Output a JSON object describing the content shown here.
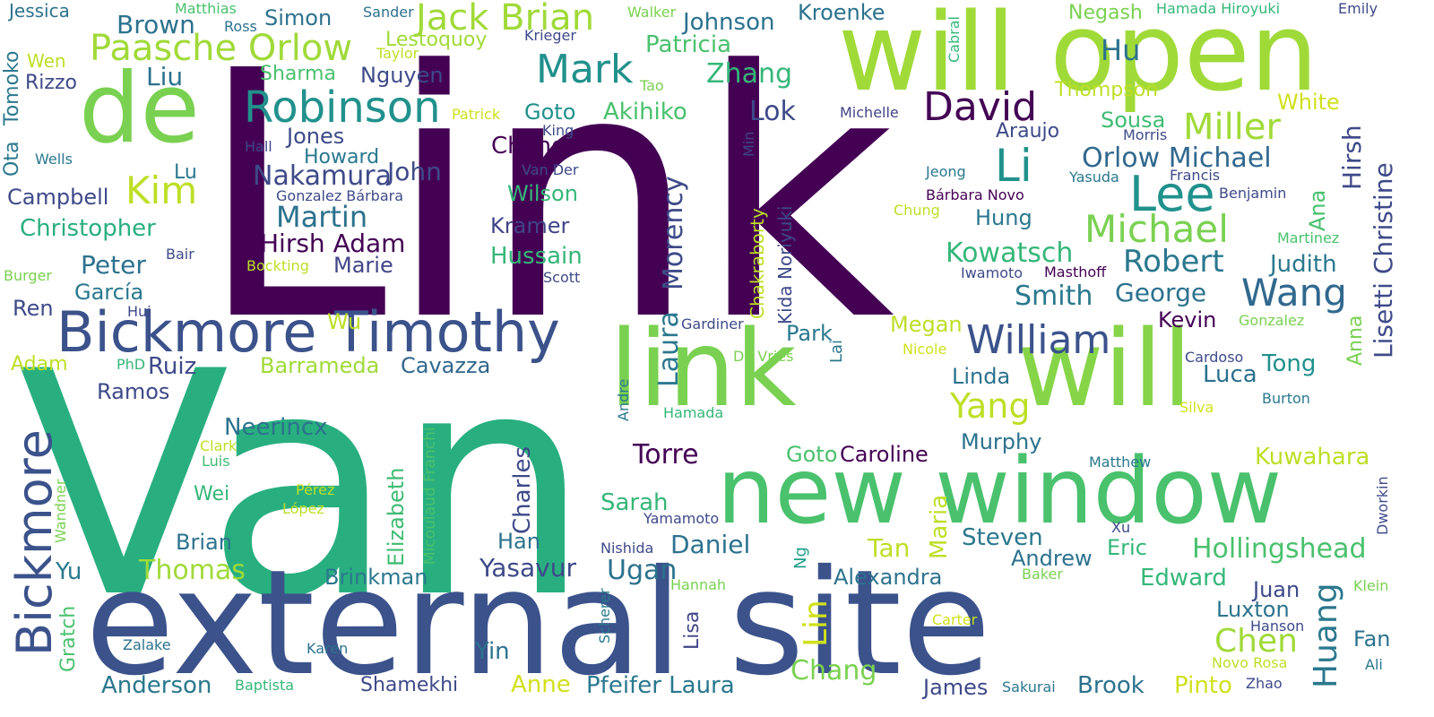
{
  "words": [
    {
      "text": "Link",
      "color": "#440154"
    },
    {
      "text": "Van",
      "color": "#29af7f"
    },
    {
      "text": "external site",
      "color": "#3b528b"
    },
    {
      "text": "will open",
      "color": "#a0da39"
    },
    {
      "text": "link",
      "color": "#7ad151"
    },
    {
      "text": "will",
      "color": "#86d549"
    },
    {
      "text": "new window",
      "color": "#4ac16d"
    },
    {
      "text": "de",
      "color": "#7ad151"
    },
    {
      "text": "Bickmore Timothy",
      "color": "#3b528b"
    },
    {
      "text": "Robinson",
      "color": "#21918c"
    },
    {
      "text": "Paasche Orlow",
      "color": "#a0da39"
    },
    {
      "text": "Jack Brian",
      "color": "#a0da39"
    },
    {
      "text": "Mark",
      "color": "#21918c"
    },
    {
      "text": "David",
      "color": "#440154"
    },
    {
      "text": "Lee",
      "color": "#21918c"
    },
    {
      "text": "Li",
      "color": "#21918c"
    },
    {
      "text": "Miller",
      "color": "#a0da39"
    },
    {
      "text": "Michael",
      "color": "#7ad151"
    },
    {
      "text": "Wang",
      "color": "#31688e"
    },
    {
      "text": "William",
      "color": "#3b528b"
    },
    {
      "text": "Bickmore",
      "color": "#3b528b"
    },
    {
      "text": "Kim",
      "color": "#bddf26"
    },
    {
      "text": "Martin",
      "color": "#2c728e"
    },
    {
      "text": "Hollingshead",
      "color": "#4ac16d"
    },
    {
      "text": "Chen",
      "color": "#a0da39"
    },
    {
      "text": "Huang",
      "color": "#2a788e"
    },
    {
      "text": "Lin",
      "color": "#d0e11c"
    },
    {
      "text": "Morency",
      "color": "#3e4a89"
    },
    {
      "text": "Laura",
      "color": "#2a788e"
    },
    {
      "text": "Charles",
      "color": "#3e4a89"
    },
    {
      "text": "Elizabeth",
      "color": "#3fbc73"
    },
    {
      "text": "Maria",
      "color": "#bddf26"
    },
    {
      "text": "Chakraborty",
      "color": "#bddf26"
    },
    {
      "text": "Kida Noriyuki",
      "color": "#3e4a89"
    },
    {
      "text": "Hirsh",
      "color": "#3e4a89"
    },
    {
      "text": "Lisetti Christine",
      "color": "#3e4a89"
    },
    {
      "text": "Ana",
      "color": "#4ac16d"
    },
    {
      "text": "Anna",
      "color": "#7ad151"
    },
    {
      "text": "Dworkin",
      "color": "#3e4a89"
    },
    {
      "text": "Gratch",
      "color": "#4ac16d"
    },
    {
      "text": "Micoulaud Franchi",
      "color": "#4ac16d"
    },
    {
      "text": "Tomoko",
      "color": "#2a788e"
    },
    {
      "text": "Ota",
      "color": "#2a788e"
    },
    {
      "text": "Lisa",
      "color": "#414487"
    },
    {
      "text": "Ng",
      "color": "#1f9e89"
    },
    {
      "text": "Lai",
      "color": "#2a788e"
    },
    {
      "text": "Min",
      "color": "#414487"
    },
    {
      "text": "Cabral",
      "color": "#35b779"
    },
    {
      "text": "Andre",
      "color": "#2a788e"
    },
    {
      "text": "Scherer",
      "color": "#2a788e"
    },
    {
      "text": "Wandner",
      "color": "#7ad151"
    },
    {
      "text": "Jessica",
      "color": "#2c728e"
    },
    {
      "text": "Matthias",
      "color": "#4ac16d"
    },
    {
      "text": "Ross",
      "color": "#2c728e"
    },
    {
      "text": "Simon",
      "color": "#2c728e"
    },
    {
      "text": "Sander",
      "color": "#2c728e"
    },
    {
      "text": "Walker",
      "color": "#7ad151"
    },
    {
      "text": "Johnson",
      "color": "#2c728e"
    },
    {
      "text": "Kroenke",
      "color": "#2c728e"
    },
    {
      "text": "Negash",
      "color": "#7ad151"
    },
    {
      "text": "Hamada Hiroyuki",
      "color": "#35b779"
    },
    {
      "text": "Emily",
      "color": "#3e4a89"
    },
    {
      "text": "Brown",
      "color": "#2c728e"
    },
    {
      "text": "Lestoquoy",
      "color": "#a0da39"
    },
    {
      "text": "Krieger",
      "color": "#3e4a89"
    },
    {
      "text": "Taylor",
      "color": "#bddf26"
    },
    {
      "text": "Patricia",
      "color": "#4ac16d"
    },
    {
      "text": "Hu",
      "color": "#2c728e"
    },
    {
      "text": "Wen",
      "color": "#bddf26"
    },
    {
      "text": "Liu",
      "color": "#2c728e"
    },
    {
      "text": "Sharma",
      "color": "#4ac16d"
    },
    {
      "text": "Nguyen",
      "color": "#3e4a89"
    },
    {
      "text": "Zhang",
      "color": "#35b779"
    },
    {
      "text": "Tao",
      "color": "#7ad151"
    },
    {
      "text": "Thompson",
      "color": "#bddf26"
    },
    {
      "text": "Rizzo",
      "color": "#3e4a89"
    },
    {
      "text": "White",
      "color": "#d0e11c"
    },
    {
      "text": "Patrick",
      "color": "#d0e11c"
    },
    {
      "text": "Goto",
      "color": "#21918c"
    },
    {
      "text": "Akihiko",
      "color": "#4ac16d"
    },
    {
      "text": "Lok",
      "color": "#3e4a89"
    },
    {
      "text": "Michelle",
      "color": "#414487"
    },
    {
      "text": "Sousa",
      "color": "#3fbc73"
    },
    {
      "text": "Jones",
      "color": "#3e4a89"
    },
    {
      "text": "King",
      "color": "#3e4a89"
    },
    {
      "text": "Araujo",
      "color": "#3e4a89"
    },
    {
      "text": "Morris",
      "color": "#3e4a89"
    },
    {
      "text": "Hall",
      "color": "#414487"
    },
    {
      "text": "Cheng",
      "color": "#440154"
    },
    {
      "text": "Wells",
      "color": "#2a788e"
    },
    {
      "text": "Howard",
      "color": "#2a788e"
    },
    {
      "text": "Orlow Michael",
      "color": "#31688e"
    },
    {
      "text": "John",
      "color": "#3e4a89"
    },
    {
      "text": "Lu",
      "color": "#2a788e"
    },
    {
      "text": "Van Der",
      "color": "#3e4a89"
    },
    {
      "text": "Jeong",
      "color": "#2a788e"
    },
    {
      "text": "Yasuda",
      "color": "#2a788e"
    },
    {
      "text": "Francis",
      "color": "#3e4a89"
    },
    {
      "text": "Nakamura",
      "color": "#3e4a89"
    },
    {
      "text": "Gonzalez Bárbara",
      "color": "#3e4a89"
    },
    {
      "text": "Bárbara Novo",
      "color": "#440154"
    },
    {
      "text": "Benjamin",
      "color": "#3e4a89"
    },
    {
      "text": "Campbell",
      "color": "#3e4a89"
    },
    {
      "text": "Wilson",
      "color": "#35b779"
    },
    {
      "text": "Chung",
      "color": "#bddf26"
    },
    {
      "text": "Hung",
      "color": "#2a788e"
    },
    {
      "text": "Christopher",
      "color": "#29af7f"
    },
    {
      "text": "Kramer",
      "color": "#414487"
    },
    {
      "text": "Hirsh Adam",
      "color": "#440154"
    },
    {
      "text": "Kowatsch",
      "color": "#35b779"
    },
    {
      "text": "Robert",
      "color": "#2a788e"
    },
    {
      "text": "Martinez",
      "color": "#4ac16d"
    },
    {
      "text": "Bair",
      "color": "#3e4a89"
    },
    {
      "text": "Bockting",
      "color": "#bddf26"
    },
    {
      "text": "Hussain",
      "color": "#35b779"
    },
    {
      "text": "Peter",
      "color": "#2c728e"
    },
    {
      "text": "Marie",
      "color": "#414487"
    },
    {
      "text": "Iwamoto",
      "color": "#3e4a89"
    },
    {
      "text": "Masthoff",
      "color": "#440154"
    },
    {
      "text": "Judith",
      "color": "#2a788e"
    },
    {
      "text": "Burger",
      "color": "#7ad151"
    },
    {
      "text": "Scott",
      "color": "#3e4a89"
    },
    {
      "text": "García",
      "color": "#2a788e"
    },
    {
      "text": "Smith",
      "color": "#2a788e"
    },
    {
      "text": "George",
      "color": "#2c728e"
    },
    {
      "text": "Ren",
      "color": "#3e4a89"
    },
    {
      "text": "Hui",
      "color": "#3e4a89"
    },
    {
      "text": "Wu",
      "color": "#bddf26"
    },
    {
      "text": "Gardiner",
      "color": "#3e4a89"
    },
    {
      "text": "Kevin",
      "color": "#440154"
    },
    {
      "text": "Gonzalez",
      "color": "#7ad151"
    },
    {
      "text": "Park",
      "color": "#2a788e"
    },
    {
      "text": "Megan",
      "color": "#bddf26"
    },
    {
      "text": "Nicole",
      "color": "#d0e11c"
    },
    {
      "text": "Adam",
      "color": "#bddf26"
    },
    {
      "text": "PhD",
      "color": "#35b779"
    },
    {
      "text": "Ruiz",
      "color": "#3e4a89"
    },
    {
      "text": "Barrameda",
      "color": "#a0da39"
    },
    {
      "text": "Cavazza",
      "color": "#31688e"
    },
    {
      "text": "De Vries",
      "color": "#7ad151"
    },
    {
      "text": "Cardoso",
      "color": "#3e4a89"
    },
    {
      "text": "Luca",
      "color": "#2c728e"
    },
    {
      "text": "Tong",
      "color": "#21918c"
    },
    {
      "text": "Ramos",
      "color": "#3e4a89"
    },
    {
      "text": "Linda",
      "color": "#2c728e"
    },
    {
      "text": "Burton",
      "color": "#2a788e"
    },
    {
      "text": "Yang",
      "color": "#bddf26"
    },
    {
      "text": "Hamada",
      "color": "#35b779"
    },
    {
      "text": "Silva",
      "color": "#d0e11c"
    },
    {
      "text": "Neerincx",
      "color": "#2c728e"
    },
    {
      "text": "Murphy",
      "color": "#2c728e"
    },
    {
      "text": "Clark",
      "color": "#bddf26"
    },
    {
      "text": "Torre",
      "color": "#440154"
    },
    {
      "text": "Goto",
      "color": "#4ac16d"
    },
    {
      "text": "Caroline",
      "color": "#440154"
    },
    {
      "text": "Luis",
      "color": "#3fbc73"
    },
    {
      "text": "Kuwahara",
      "color": "#bddf26"
    },
    {
      "text": "Matthew",
      "color": "#2a788e"
    },
    {
      "text": "Wei",
      "color": "#35b779"
    },
    {
      "text": "Pérez",
      "color": "#bddf26"
    },
    {
      "text": "Sarah",
      "color": "#35b779"
    },
    {
      "text": "López",
      "color": "#bddf26"
    },
    {
      "text": "Yamamoto",
      "color": "#3e4a89"
    },
    {
      "text": "Xu",
      "color": "#3e4a89"
    },
    {
      "text": "Brian",
      "color": "#2c728e"
    },
    {
      "text": "Daniel",
      "color": "#2c728e"
    },
    {
      "text": "Tan",
      "color": "#bddf26"
    },
    {
      "text": "Steven",
      "color": "#2a788e"
    },
    {
      "text": "Han",
      "color": "#2c728e"
    },
    {
      "text": "Nishida",
      "color": "#3e4a89"
    },
    {
      "text": "Eric",
      "color": "#35b779"
    },
    {
      "text": "Andrew",
      "color": "#2c728e"
    },
    {
      "text": "Thomas",
      "color": "#a0da39"
    },
    {
      "text": "Yu",
      "color": "#2a788e"
    },
    {
      "text": "Yasavur",
      "color": "#3e4a89"
    },
    {
      "text": "Ugan",
      "color": "#2c728e"
    },
    {
      "text": "Brinkman",
      "color": "#2a788e"
    },
    {
      "text": "Alexandra",
      "color": "#2c728e"
    },
    {
      "text": "Baker",
      "color": "#7ad151"
    },
    {
      "text": "Edward",
      "color": "#35b779"
    },
    {
      "text": "Hannah",
      "color": "#7ad151"
    },
    {
      "text": "Juan",
      "color": "#3e4a89"
    },
    {
      "text": "Klein",
      "color": "#7ad151"
    },
    {
      "text": "Luxton",
      "color": "#2c728e"
    },
    {
      "text": "Hanson",
      "color": "#3e4a89"
    },
    {
      "text": "Carter",
      "color": "#d0e11c"
    },
    {
      "text": "Fan",
      "color": "#2c728e"
    },
    {
      "text": "Zalake",
      "color": "#2c728e"
    },
    {
      "text": "Karen",
      "color": "#2c728e"
    },
    {
      "text": "Yin",
      "color": "#2c728e"
    },
    {
      "text": "Chang",
      "color": "#7ad151"
    },
    {
      "text": "Novo Rosa",
      "color": "#bddf26"
    },
    {
      "text": "Ali",
      "color": "#2a788e"
    },
    {
      "text": "Anderson",
      "color": "#2a788e"
    },
    {
      "text": "Baptista",
      "color": "#35b779"
    },
    {
      "text": "Shamekhi",
      "color": "#3e4a89"
    },
    {
      "text": "Anne",
      "color": "#d0e11c"
    },
    {
      "text": "Pfeifer Laura",
      "color": "#2a788e"
    },
    {
      "text": "James",
      "color": "#3e4a89"
    },
    {
      "text": "Sakurai",
      "color": "#2a788e"
    },
    {
      "text": "Brook",
      "color": "#2c728e"
    },
    {
      "text": "Pinto",
      "color": "#d0e11c"
    },
    {
      "text": "Zhao",
      "color": "#3e4a89"
    }
  ]
}
